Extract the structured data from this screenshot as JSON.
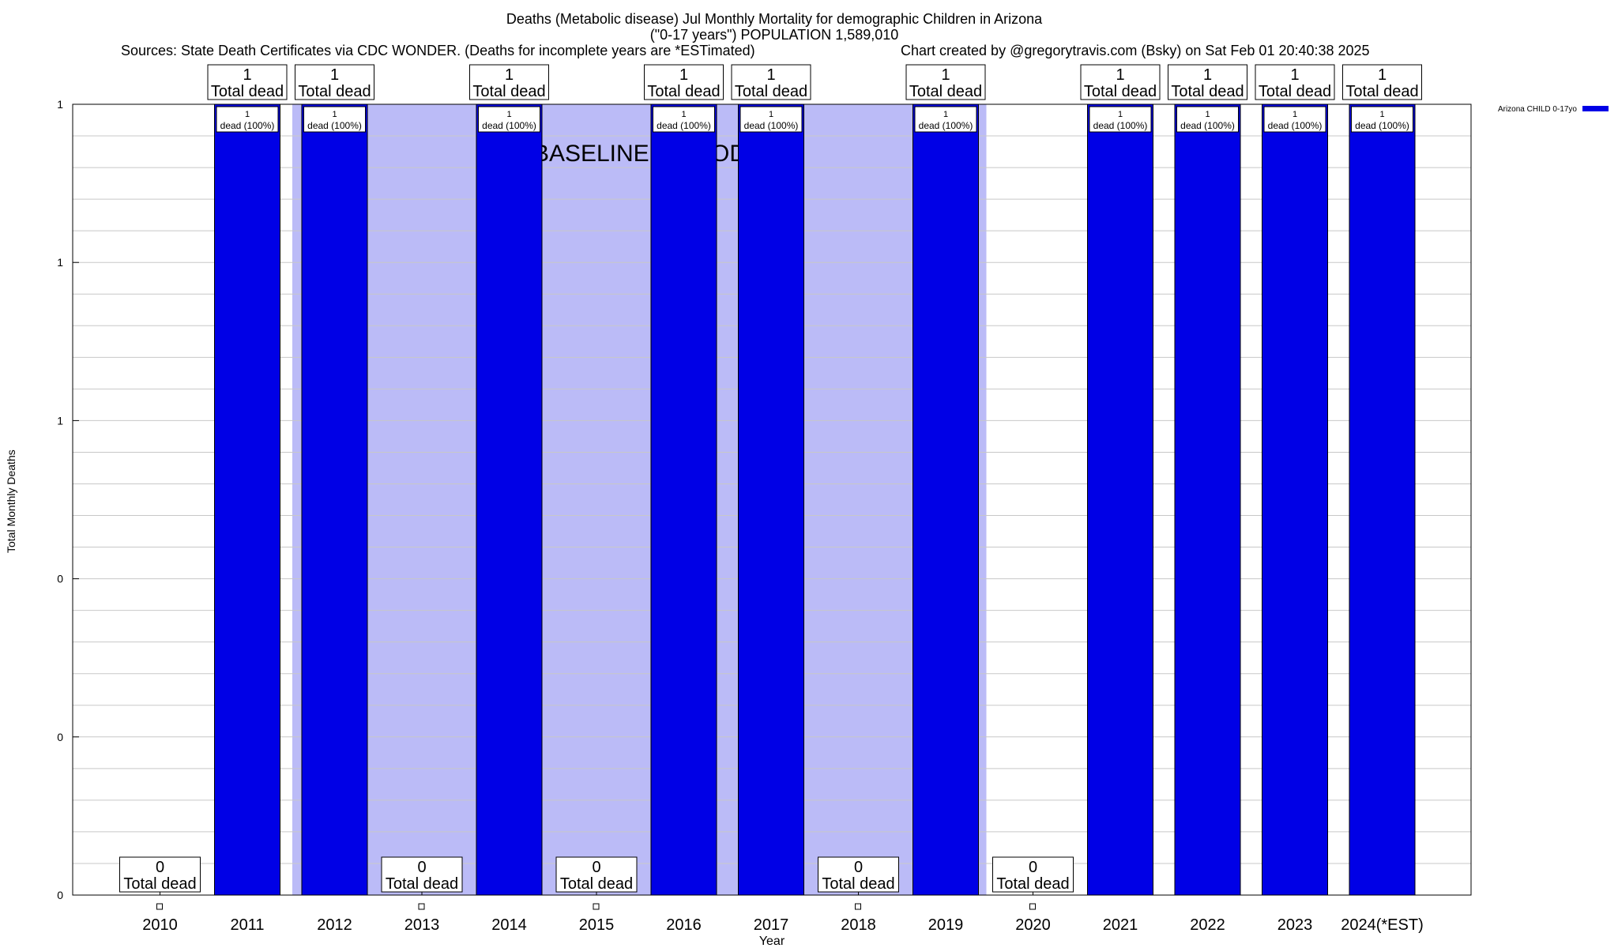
{
  "header": {
    "title_line1": "Deaths (Metabolic disease) Jul Monthly Mortality for demographic Children in Arizona",
    "title_line2": "(\"0-17 years\") POPULATION 1,589,010",
    "sources": "Sources: State Death Certificates via CDC WONDER. (Deaths for incomplete years are *ESTimated)",
    "credit": "Chart created by @gregorytravis.com (Bsky) on Sat Feb 01 20:40:38 2025"
  },
  "chart_data": {
    "type": "bar",
    "categories": [
      "2010",
      "2011",
      "2012",
      "2013",
      "2014",
      "2015",
      "2016",
      "2017",
      "2018",
      "2019",
      "2020",
      "2021",
      "2022",
      "2023",
      "2024(*EST)"
    ],
    "series": [
      {
        "name": "Arizona CHILD 0-17yo",
        "values": [
          0,
          1,
          1,
          0,
          1,
          0,
          1,
          1,
          0,
          1,
          0,
          1,
          1,
          1,
          1
        ]
      }
    ],
    "total_label_suffix": "Total dead",
    "bar_label_suffix": "dead (100%)",
    "xlabel": "Year",
    "ylabel": "Total Monthly Deaths",
    "ylim": [
      0,
      1
    ],
    "yticks": [
      0,
      0.2,
      0.4,
      0.6,
      0.8,
      1.0
    ],
    "ytick_labels": [
      "0",
      "0",
      "0",
      "1",
      "1",
      "1"
    ],
    "baseline_period": {
      "label": "BASELINE PERIOD",
      "start": "2013",
      "end": "2019"
    },
    "grid": true,
    "legend_position": "top-right",
    "colors": {
      "bar": "#0000e6",
      "baseline": "#bbbbf7",
      "grid": "#c8c8c8"
    }
  }
}
